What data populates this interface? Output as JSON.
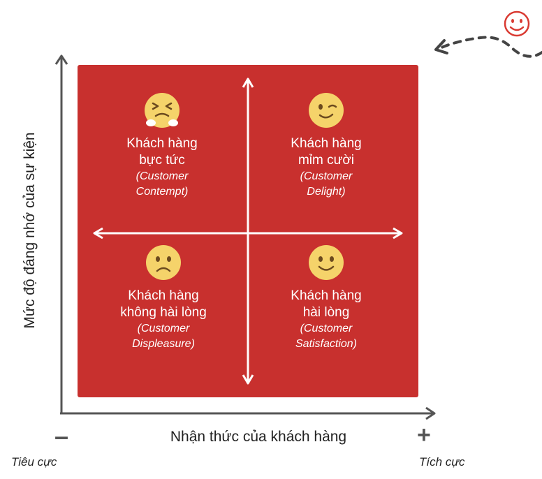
{
  "axes": {
    "y_label": "Mức độ đáng nhớ của sự kiện",
    "x_label": "Nhận thức của khách hàng",
    "minus_symbol": "–",
    "plus_symbol": "+",
    "negative_label": "Tiêu cực",
    "positive_label": "Tích cực"
  },
  "quadrants": {
    "top_left": {
      "title": [
        "Khách hàng",
        "bực tức"
      ],
      "subtitle": [
        "(Customer",
        "Contempt)"
      ],
      "icon": "angry-face-icon"
    },
    "top_right": {
      "title": [
        "Khách hàng",
        "mỉm cười"
      ],
      "subtitle": [
        "(Customer",
        "Delight)"
      ],
      "icon": "winking-face-icon"
    },
    "bottom_left": {
      "title": [
        "Khách hàng",
        "không hài lòng"
      ],
      "subtitle": [
        "(Customer",
        "Displeasure)"
      ],
      "icon": "frowning-face-icon"
    },
    "bottom_right": {
      "title": [
        "Khách hàng",
        "hài lòng"
      ],
      "subtitle": [
        "(Customer",
        "Satisfaction)"
      ],
      "icon": "smiling-face-icon"
    }
  },
  "decoration": {
    "icon": "smiley-outline-icon",
    "arrow": "dashed-curved-arrow-icon"
  },
  "colors": {
    "quadrant_bg": "#c8302e",
    "emoji": "#f5d36a",
    "accent": "#d93a32",
    "axis": "#555555"
  }
}
